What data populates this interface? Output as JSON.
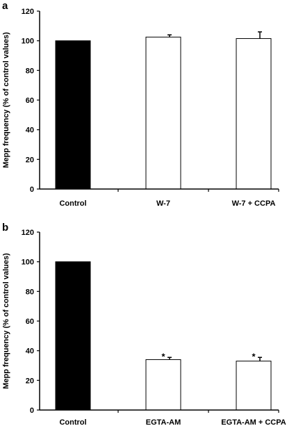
{
  "chart_data": [
    {
      "panel": "a",
      "type": "bar",
      "categories": [
        "Control",
        "W-7",
        "W-7 + CCPA"
      ],
      "values": [
        100,
        102.5,
        101.5
      ],
      "errors": [
        0,
        1.5,
        4.5
      ],
      "bar_colors": [
        "#000000",
        "#ffffff",
        "#ffffff"
      ],
      "significance": [
        "",
        "",
        ""
      ],
      "ylabel": "Mepp frequency (% of control values)",
      "ylim": [
        0,
        120
      ],
      "yticks": [
        "0",
        "20",
        "40",
        "60",
        "80",
        "100",
        "120"
      ]
    },
    {
      "panel": "b",
      "type": "bar",
      "categories": [
        "Control",
        "EGTA-AM",
        "EGTA-AM + CCPA"
      ],
      "values": [
        100,
        34,
        33
      ],
      "errors": [
        0,
        1.5,
        2.5
      ],
      "bar_colors": [
        "#000000",
        "#ffffff",
        "#ffffff"
      ],
      "significance": [
        "",
        "*",
        "*"
      ],
      "ylabel": "Mepp frequency (% of control values)",
      "ylim": [
        0,
        120
      ],
      "yticks": [
        "0",
        "20",
        "40",
        "60",
        "80",
        "100",
        "120"
      ]
    }
  ]
}
